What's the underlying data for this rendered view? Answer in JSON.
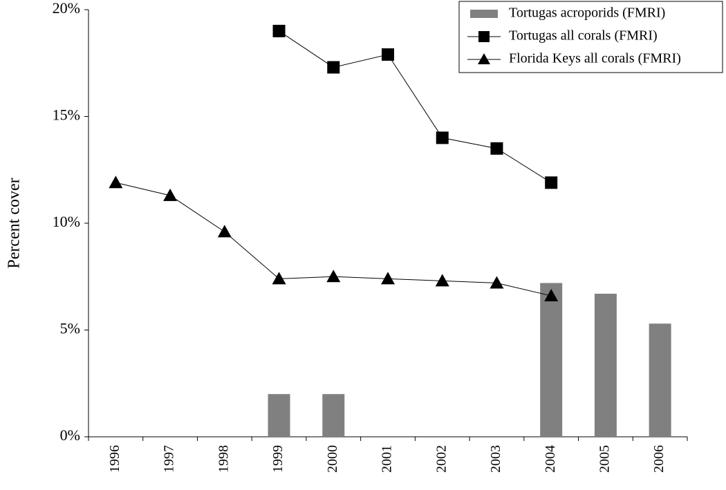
{
  "chart_data": {
    "type": "bar_line",
    "y_label": "Percent cover",
    "categories": [
      "1996",
      "1997",
      "1998",
      "1999",
      "2000",
      "2001",
      "2002",
      "2003",
      "2004",
      "2005",
      "2006"
    ],
    "series": [
      {
        "name": "Tortugas acroporids (FMRI)",
        "type": "bar",
        "color": "#808080",
        "values": [
          null,
          null,
          null,
          2.0,
          2.0,
          null,
          null,
          null,
          7.2,
          6.7,
          5.3
        ]
      },
      {
        "name": "Tortugas all corals (FMRI)",
        "type": "line",
        "marker": "square",
        "color": "#000000",
        "values": [
          null,
          null,
          null,
          19.0,
          17.3,
          17.9,
          14.0,
          13.5,
          11.9,
          null,
          null
        ]
      },
      {
        "name": "Florida Keys all corals (FMRI)",
        "type": "line",
        "marker": "triangle",
        "color": "#000000",
        "values": [
          11.9,
          11.3,
          9.6,
          7.4,
          7.5,
          7.4,
          7.3,
          7.2,
          6.6,
          null,
          null
        ]
      }
    ],
    "ylim": [
      0,
      20
    ],
    "yticks": [
      {
        "value": 0,
        "label": "0%"
      },
      {
        "value": 5,
        "label": "5%"
      },
      {
        "value": 10,
        "label": "10%"
      },
      {
        "value": 15,
        "label": "15%"
      },
      {
        "value": 20,
        "label": "20%"
      }
    ],
    "legend": "top-right"
  }
}
